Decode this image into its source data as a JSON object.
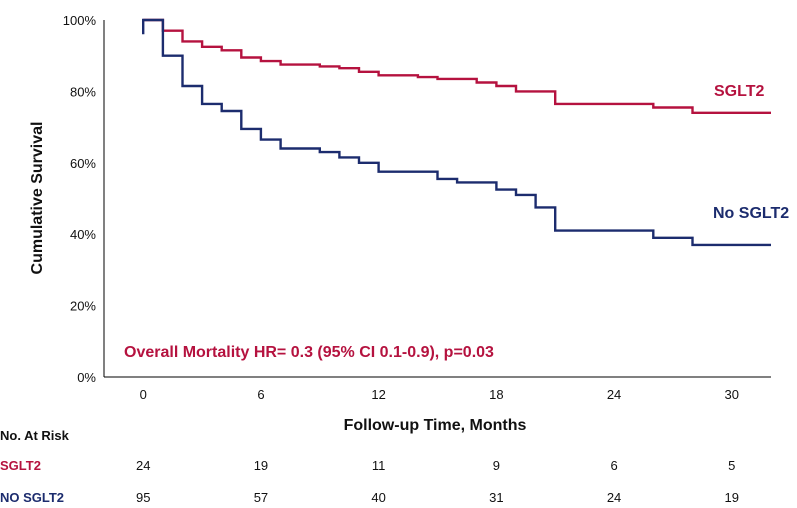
{
  "chart_data": {
    "type": "line",
    "subtype": "kaplan-meier-step",
    "xlabel": "Follow-up Time, Months",
    "ylabel": "Cumulative Survival",
    "xlim": [
      -2,
      32
    ],
    "ylim": [
      0,
      100
    ],
    "x_ticks": [
      0,
      6,
      12,
      18,
      24,
      30
    ],
    "y_ticks": [
      0,
      20,
      40,
      60,
      80,
      100
    ],
    "y_tick_labels": [
      "0%",
      "20%",
      "40%",
      "60%",
      "80%",
      "100%"
    ],
    "grid": false,
    "series": [
      {
        "name": "SGLT2",
        "color": "#b5123f",
        "points": [
          [
            0,
            100
          ],
          [
            1,
            100
          ],
          [
            1,
            97
          ],
          [
            2,
            97
          ],
          [
            2,
            94
          ],
          [
            3,
            94
          ],
          [
            3,
            92.5
          ],
          [
            4,
            92.5
          ],
          [
            4,
            91.5
          ],
          [
            5,
            91.5
          ],
          [
            5,
            89.5
          ],
          [
            6,
            89.5
          ],
          [
            6,
            88.5
          ],
          [
            7,
            88.5
          ],
          [
            7,
            87.5
          ],
          [
            9,
            87.5
          ],
          [
            9,
            87
          ],
          [
            10,
            87
          ],
          [
            10,
            86.5
          ],
          [
            11,
            86.5
          ],
          [
            11,
            85.5
          ],
          [
            12,
            85.5
          ],
          [
            12,
            84.5
          ],
          [
            14,
            84.5
          ],
          [
            14,
            84
          ],
          [
            15,
            84
          ],
          [
            15,
            83.5
          ],
          [
            17,
            83.5
          ],
          [
            17,
            82.5
          ],
          [
            18,
            82.5
          ],
          [
            18,
            81.5
          ],
          [
            19,
            81.5
          ],
          [
            19,
            80
          ],
          [
            21,
            80
          ],
          [
            21,
            76.5
          ],
          [
            26,
            76.5
          ],
          [
            26,
            75.5
          ],
          [
            28,
            75.5
          ],
          [
            28,
            74
          ],
          [
            32,
            74
          ]
        ]
      },
      {
        "name": "No SGLT2",
        "color": "#1c2c6e",
        "points": [
          [
            0,
            96
          ],
          [
            0,
            100
          ],
          [
            1,
            100
          ],
          [
            1,
            90
          ],
          [
            2,
            90
          ],
          [
            2,
            81.5
          ],
          [
            3,
            81.5
          ],
          [
            3,
            76.5
          ],
          [
            4,
            76.5
          ],
          [
            4,
            74.5
          ],
          [
            5,
            74.5
          ],
          [
            5,
            69.5
          ],
          [
            6,
            69.5
          ],
          [
            6,
            66.5
          ],
          [
            7,
            66.5
          ],
          [
            7,
            64
          ],
          [
            9,
            64
          ],
          [
            9,
            63
          ],
          [
            10,
            63
          ],
          [
            10,
            61.5
          ],
          [
            11,
            61.5
          ],
          [
            11,
            60
          ],
          [
            12,
            60
          ],
          [
            12,
            57.5
          ],
          [
            15,
            57.5
          ],
          [
            15,
            55.5
          ],
          [
            16,
            55.5
          ],
          [
            16,
            54.5
          ],
          [
            18,
            54.5
          ],
          [
            18,
            52.5
          ],
          [
            19,
            52.5
          ],
          [
            19,
            51
          ],
          [
            20,
            51
          ],
          [
            20,
            47.5
          ],
          [
            21,
            47.5
          ],
          [
            21,
            41
          ],
          [
            26,
            41
          ],
          [
            26,
            39
          ],
          [
            28,
            39
          ],
          [
            28,
            37
          ],
          [
            32,
            37
          ]
        ]
      }
    ],
    "series_labels": [
      "SGLT2",
      "No SGLT2"
    ],
    "annotation": {
      "text": "Overall Mortality HR= 0.3 (95% CI 0.1-0.9), p=0.03",
      "color": "#b5123f"
    },
    "risk_table": {
      "title": "No. At Risk",
      "times": [
        0,
        6,
        12,
        18,
        24,
        30
      ],
      "rows": [
        {
          "label": "SGLT2",
          "color": "#b5123f",
          "values": [
            "24",
            "19",
            "11",
            "9",
            "6",
            "5"
          ]
        },
        {
          "label": "NO SGLT2",
          "color": "#1c2c6e",
          "values": [
            "95",
            "57",
            "40",
            "31",
            "24",
            "19"
          ]
        }
      ]
    }
  }
}
